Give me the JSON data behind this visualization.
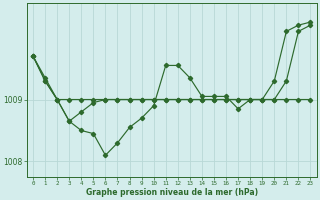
{
  "hours": [
    0,
    1,
    2,
    3,
    4,
    5,
    6,
    7,
    8,
    9,
    10,
    11,
    12,
    13,
    14,
    15,
    16,
    17,
    18,
    19,
    20,
    21,
    22,
    23
  ],
  "line_jagged": [
    1009.7,
    1009.35,
    1009.0,
    1008.65,
    1008.5,
    1008.45,
    1008.1,
    1008.3,
    1008.55,
    1008.7,
    1008.9,
    1009.55,
    1009.55,
    1009.35,
    1009.05,
    1009.05,
    1009.05,
    1008.85,
    1009.0,
    1009.0,
    1009.3,
    1010.1,
    1010.2,
    1010.25
  ],
  "line_flat": [
    1009.7,
    1009.3,
    1009.0,
    1009.0,
    1009.0,
    1009.0,
    1009.0,
    1009.0,
    1009.0,
    1009.0,
    1009.0,
    1009.0,
    1009.0,
    1009.0,
    1009.0,
    1009.0,
    1009.0,
    1009.0,
    1009.0,
    1009.0,
    1009.0,
    1009.0,
    1009.0,
    1009.0
  ],
  "line_cross": [
    1009.7,
    1009.3,
    1009.0,
    1008.65,
    1008.8,
    1008.95,
    1009.0,
    1009.0,
    1009.0,
    1009.0,
    1009.0,
    1009.0,
    1009.0,
    1009.0,
    1009.0,
    1009.0,
    1009.0,
    1009.0,
    1009.0,
    1009.0,
    1009.0,
    1009.3,
    1010.1,
    1010.2
  ],
  "line_color": "#2d6a2d",
  "bg_color": "#d4edec",
  "grid_color": "#b8d8d6",
  "ylabel_values": [
    1008,
    1009
  ],
  "xlim": [
    -0.5,
    23.5
  ],
  "ylim": [
    1007.75,
    1010.55
  ],
  "xlabel": "Graphe pression niveau de la mer (hPa)"
}
